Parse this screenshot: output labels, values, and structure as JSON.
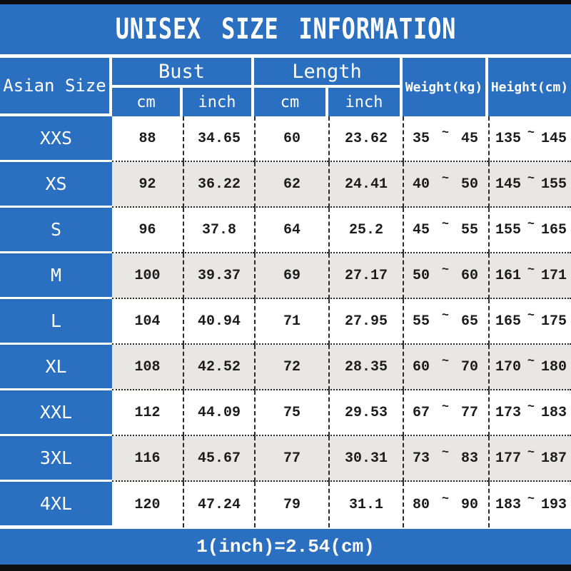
{
  "title": "UNISEX SIZE INFORMATION",
  "symbols": {
    "tilde": "~"
  },
  "colors": {
    "accent_blue": "#2b6fc1",
    "stripe_gray": "#e8e7e3",
    "edge_black": "#0d0d0d"
  },
  "header": {
    "size_col": "Asian Size",
    "bust": "Bust",
    "length": "Length",
    "weight": "Weight(kg)",
    "height": "Height(cm)",
    "sub_cm": "cm",
    "sub_inch": "inch"
  },
  "table": {
    "rows": [
      {
        "size": "XXS",
        "bust_cm": "88",
        "bust_inch": "34.65",
        "length_cm": "60",
        "length_inch": "23.62",
        "weight_min": "35",
        "weight_max": "45",
        "height_min": "135",
        "height_max": "145"
      },
      {
        "size": "XS",
        "bust_cm": "92",
        "bust_inch": "36.22",
        "length_cm": "62",
        "length_inch": "24.41",
        "weight_min": "40",
        "weight_max": "50",
        "height_min": "145",
        "height_max": "155"
      },
      {
        "size": "S",
        "bust_cm": "96",
        "bust_inch": "37.8",
        "length_cm": "64",
        "length_inch": "25.2",
        "weight_min": "45",
        "weight_max": "55",
        "height_min": "155",
        "height_max": "165"
      },
      {
        "size": "M",
        "bust_cm": "100",
        "bust_inch": "39.37",
        "length_cm": "69",
        "length_inch": "27.17",
        "weight_min": "50",
        "weight_max": "60",
        "height_min": "161",
        "height_max": "171"
      },
      {
        "size": "L",
        "bust_cm": "104",
        "bust_inch": "40.94",
        "length_cm": "71",
        "length_inch": "27.95",
        "weight_min": "55",
        "weight_max": "65",
        "height_min": "165",
        "height_max": "175"
      },
      {
        "size": "XL",
        "bust_cm": "108",
        "bust_inch": "42.52",
        "length_cm": "72",
        "length_inch": "28.35",
        "weight_min": "60",
        "weight_max": "70",
        "height_min": "170",
        "height_max": "180"
      },
      {
        "size": "XXL",
        "bust_cm": "112",
        "bust_inch": "44.09",
        "length_cm": "75",
        "length_inch": "29.53",
        "weight_min": "67",
        "weight_max": "77",
        "height_min": "173",
        "height_max": "183"
      },
      {
        "size": "3XL",
        "bust_cm": "116",
        "bust_inch": "45.67",
        "length_cm": "77",
        "length_inch": "30.31",
        "weight_min": "73",
        "weight_max": "83",
        "height_min": "177",
        "height_max": "187"
      },
      {
        "size": "4XL",
        "bust_cm": "120",
        "bust_inch": "47.24",
        "length_cm": "79",
        "length_inch": "31.1",
        "weight_min": "80",
        "weight_max": "90",
        "height_min": "183",
        "height_max": "193"
      }
    ]
  },
  "footer": {
    "note": "1(inch)=2.54(cm)"
  }
}
